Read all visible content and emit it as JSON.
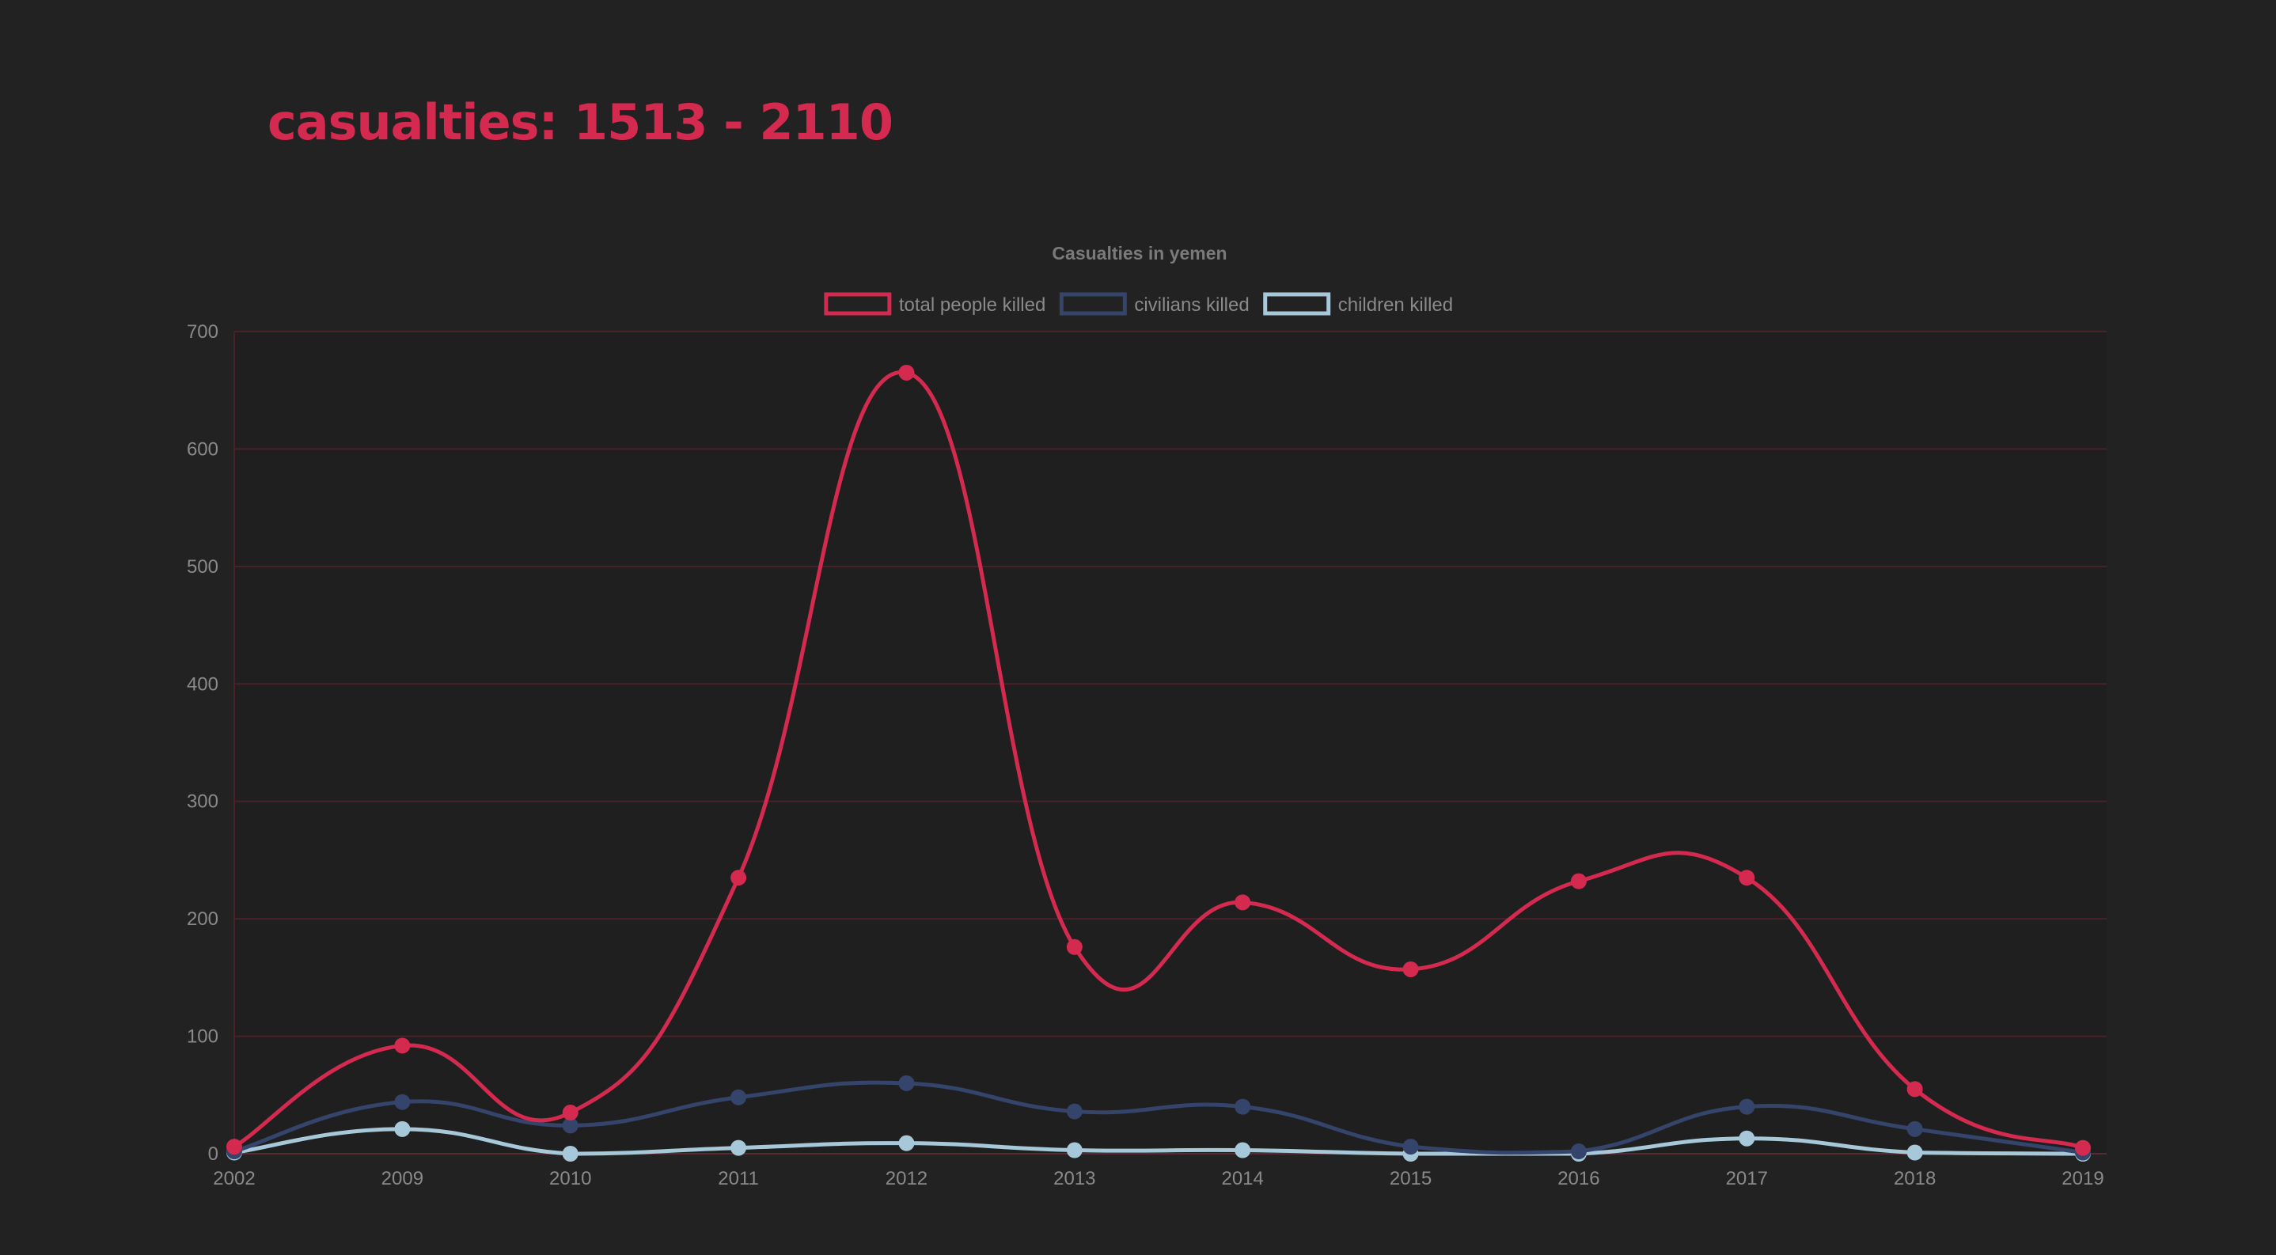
{
  "header": {
    "title": "casualties: 1513 - 2110"
  },
  "chart_data": {
    "type": "line",
    "title": "Casualties in yemen",
    "xlabel": "",
    "ylabel": "",
    "categories": [
      "2002",
      "2009",
      "2010",
      "2011",
      "2012",
      "2013",
      "2014",
      "2015",
      "2016",
      "2017",
      "2018",
      "2019"
    ],
    "ylim": [
      0,
      700
    ],
    "y_ticks": [
      "0",
      "100",
      "200",
      "300",
      "400",
      "500",
      "600",
      "700"
    ],
    "grid": true,
    "legend_position": "top-center",
    "series": [
      {
        "name": "total people killed",
        "color": "#d42a4f",
        "values": [
          6,
          92,
          35,
          235,
          665,
          176,
          214,
          157,
          232,
          235,
          55,
          5
        ]
      },
      {
        "name": "civilians killed",
        "color": "#34446a",
        "values": [
          2,
          44,
          24,
          48,
          60,
          36,
          40,
          6,
          2,
          40,
          21,
          1
        ]
      },
      {
        "name": "children killed",
        "color": "#a7c8d8",
        "values": [
          1,
          21,
          0,
          5,
          9,
          3,
          3,
          0,
          0,
          13,
          1,
          0
        ]
      }
    ]
  }
}
